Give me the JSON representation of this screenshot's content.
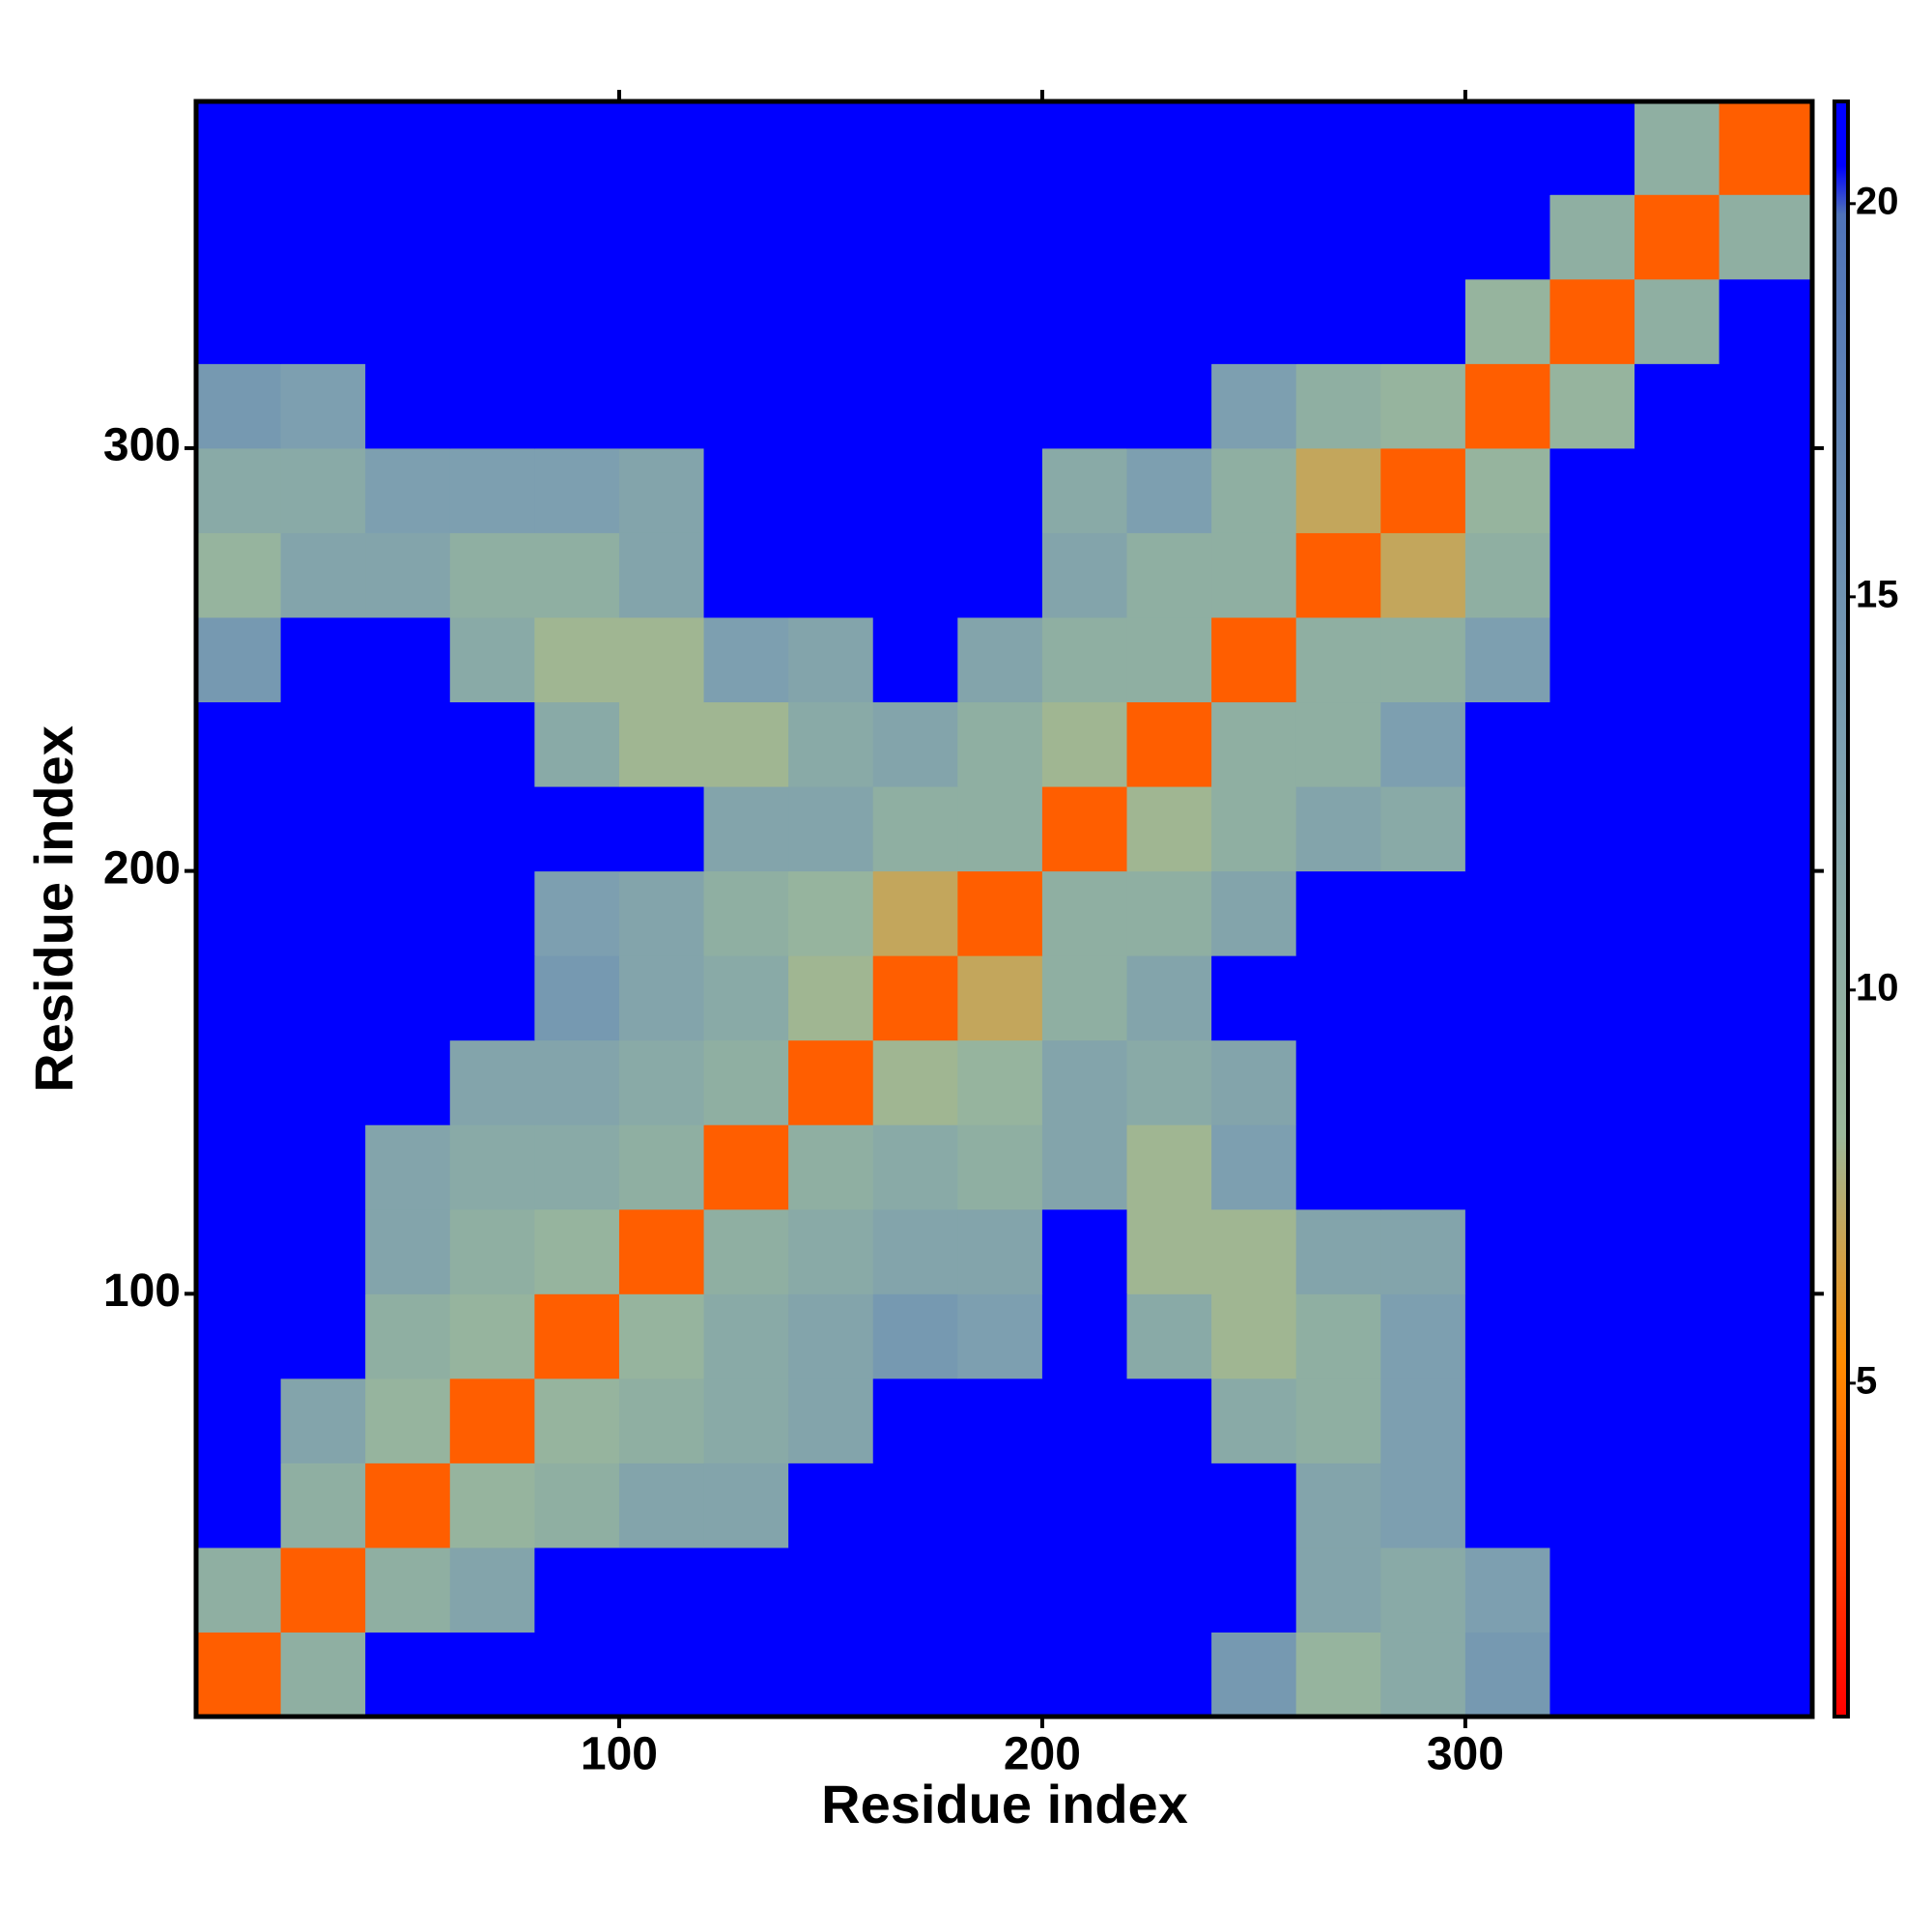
{
  "chart_data": {
    "type": "heatmap",
    "x_label": "Residue index",
    "y_label": "Residue index",
    "xlim": [
      0,
      382
    ],
    "ylim": [
      0,
      382
    ],
    "xticks": [
      100,
      200,
      300
    ],
    "yticks": [
      100,
      200,
      300
    ],
    "xbins": [
      0,
      20,
      40,
      60,
      80,
      100,
      120,
      140,
      160,
      180,
      200,
      220,
      240,
      260,
      280,
      300,
      320,
      340,
      360,
      382
    ],
    "ybins": [
      0,
      20,
      40,
      60,
      80,
      100,
      120,
      140,
      160,
      180,
      200,
      220,
      240,
      260,
      280,
      300,
      320,
      340,
      360,
      382
    ],
    "zlim": [
      0.76,
      21.3
    ],
    "zticks": [
      5,
      10,
      15,
      20
    ],
    "colorscale": [
      [
        0,
        "#ff0000"
      ],
      [
        0.22,
        "#ff8c00"
      ],
      [
        0.36,
        "#9bb89a"
      ],
      [
        0.6,
        "#7c9fb0"
      ],
      [
        0.93,
        "#4f73b8"
      ],
      [
        0.96,
        "#0000ff"
      ],
      [
        1,
        "#0000ff"
      ]
    ],
    "z": [
      [
        3.8,
        10,
        21,
        21,
        21,
        21,
        21,
        21,
        21,
        21,
        21,
        21,
        14,
        9,
        11,
        14,
        21,
        21,
        21
      ],
      [
        10,
        3.8,
        10,
        12,
        21,
        21,
        21,
        21,
        21,
        21,
        21,
        21,
        21,
        12,
        11,
        13,
        21,
        21,
        21
      ],
      [
        21,
        10,
        3.8,
        9,
        10,
        12,
        12,
        21,
        21,
        21,
        21,
        21,
        21,
        12,
        13,
        21,
        21,
        21,
        21
      ],
      [
        21,
        12,
        9,
        3.8,
        9,
        10,
        11,
        12,
        21,
        21,
        21,
        21,
        11,
        10,
        13,
        21,
        21,
        21,
        21
      ],
      [
        21,
        21,
        10,
        9,
        3.8,
        9,
        11,
        12,
        14,
        13,
        21,
        11,
        8,
        10,
        13,
        21,
        21,
        21,
        21
      ],
      [
        21,
        21,
        12,
        10,
        9,
        3.8,
        10,
        11,
        12,
        12,
        21,
        8,
        8,
        12,
        12,
        21,
        21,
        21,
        21
      ],
      [
        21,
        21,
        12,
        11,
        11,
        10,
        3.8,
        10,
        11,
        10,
        12,
        8,
        13,
        21,
        21,
        21,
        21,
        21,
        21
      ],
      [
        21,
        21,
        21,
        12,
        12,
        11,
        10,
        3.8,
        8,
        9,
        12,
        11,
        12,
        21,
        21,
        21,
        21,
        21,
        21
      ],
      [
        21,
        21,
        21,
        21,
        14,
        12,
        11,
        8,
        3.8,
        7,
        10,
        12,
        21,
        21,
        21,
        21,
        21,
        21,
        21
      ],
      [
        21,
        21,
        21,
        21,
        13,
        12,
        10,
        9,
        7,
        3.8,
        10,
        10,
        12,
        21,
        21,
        21,
        21,
        21,
        21
      ],
      [
        21,
        21,
        21,
        21,
        21,
        21,
        12,
        12,
        10,
        10,
        3.8,
        8,
        10,
        12,
        11,
        21,
        21,
        21,
        21
      ],
      [
        21,
        21,
        21,
        21,
        11,
        8,
        8,
        11,
        12,
        10,
        8,
        3.8,
        10,
        10,
        13,
        21,
        21,
        21,
        21
      ],
      [
        14,
        21,
        21,
        11,
        8,
        8,
        13,
        12,
        21,
        12,
        10,
        10,
        3.8,
        10,
        10,
        13,
        21,
        21,
        21
      ],
      [
        9,
        12,
        12,
        10,
        10,
        12,
        21,
        21,
        21,
        21,
        12,
        10,
        10,
        3.8,
        7,
        10,
        21,
        21,
        21
      ],
      [
        11,
        11,
        13,
        13,
        13,
        12,
        21,
        21,
        21,
        21,
        11,
        13,
        10,
        7,
        3.8,
        9,
        21,
        21,
        21
      ],
      [
        14,
        13,
        21,
        21,
        21,
        21,
        21,
        21,
        21,
        21,
        21,
        21,
        13,
        10,
        9,
        3.8,
        9,
        21,
        21
      ],
      [
        21,
        21,
        21,
        21,
        21,
        21,
        21,
        21,
        21,
        21,
        21,
        21,
        21,
        21,
        21,
        9,
        3.8,
        10,
        21
      ],
      [
        21,
        21,
        21,
        21,
        21,
        21,
        21,
        21,
        21,
        21,
        21,
        21,
        21,
        21,
        21,
        21,
        10,
        3.8,
        10
      ],
      [
        21,
        21,
        21,
        21,
        21,
        21,
        21,
        21,
        21,
        21,
        21,
        21,
        21,
        21,
        21,
        21,
        21,
        10,
        3.8
      ]
    ]
  }
}
